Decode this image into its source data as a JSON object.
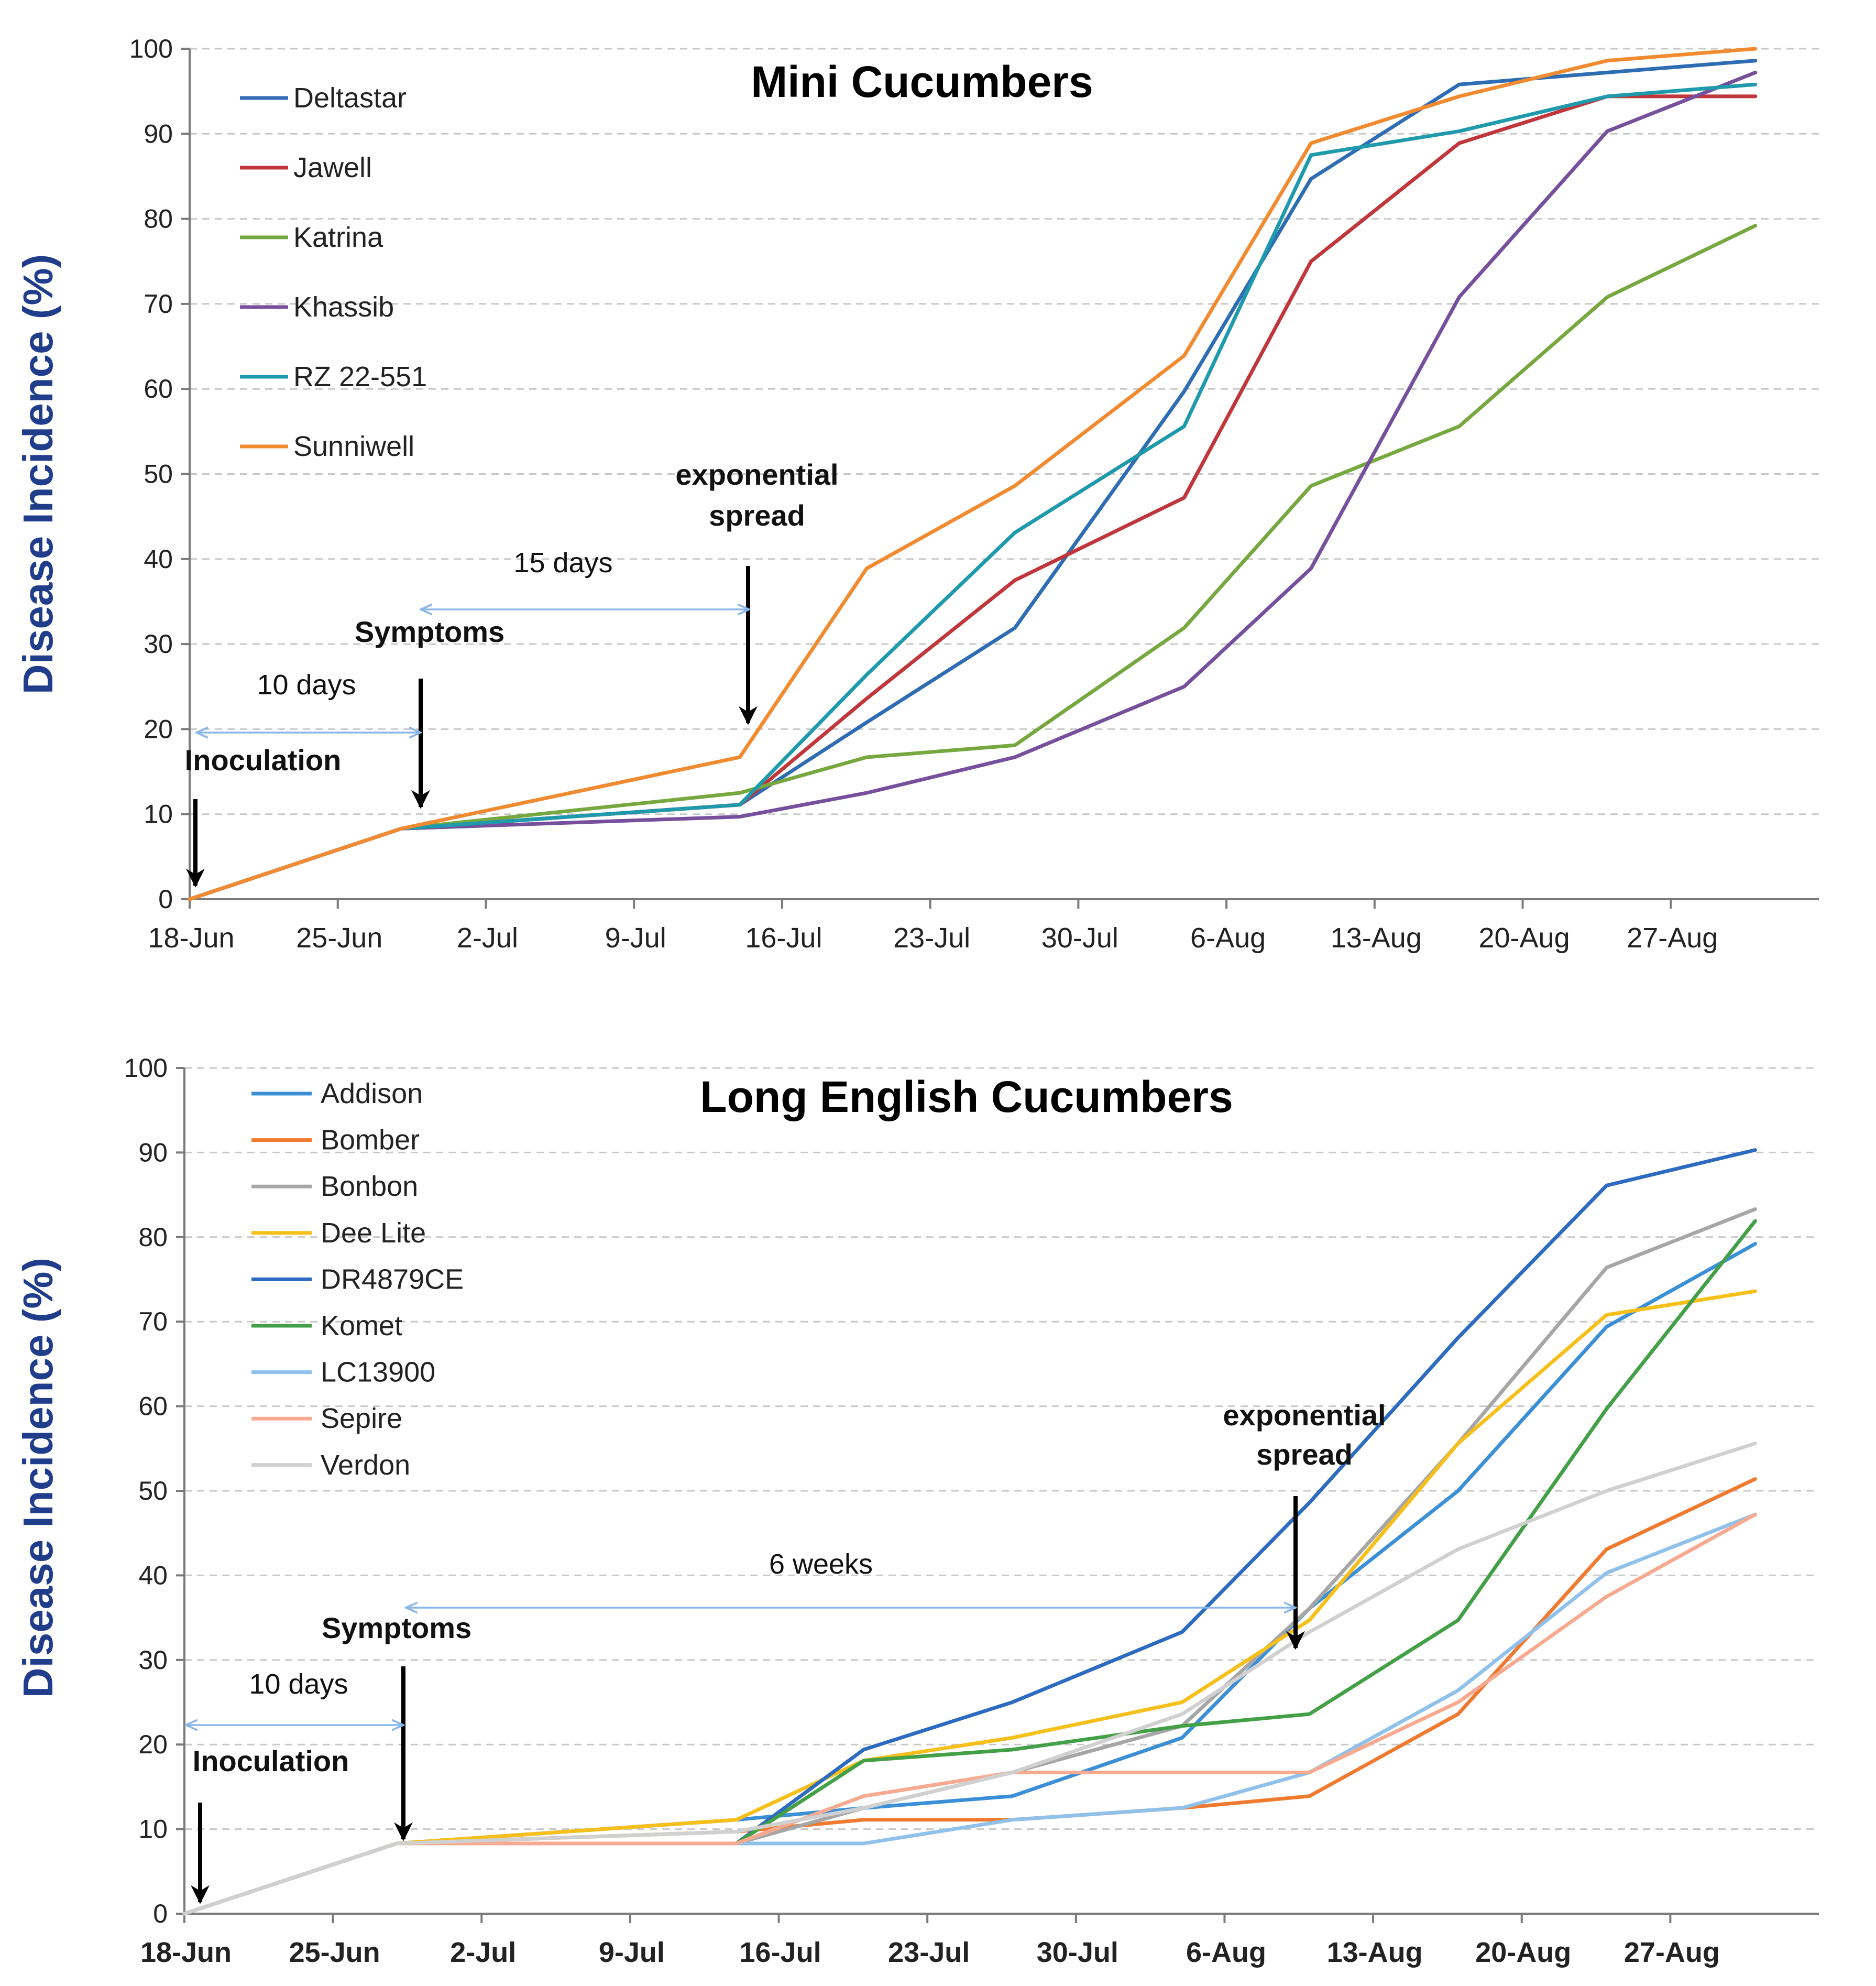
{
  "chart_data": [
    {
      "type": "line",
      "title": "Mini Cucumbers",
      "xlabel": "",
      "ylabel": "Disease Incidence (%)",
      "ylim": [
        0,
        100
      ],
      "yticks": [
        0,
        10,
        20,
        30,
        40,
        50,
        60,
        70,
        80,
        90,
        100
      ],
      "xlim": [
        0,
        74
      ],
      "xticks": [
        {
          "day": 0,
          "label": "18-Jun"
        },
        {
          "day": 7,
          "label": "25-Jun"
        },
        {
          "day": 14,
          "label": "2-Jul"
        },
        {
          "day": 21,
          "label": "9-Jul"
        },
        {
          "day": 28,
          "label": "16-Jul"
        },
        {
          "day": 35,
          "label": "23-Jul"
        },
        {
          "day": 42,
          "label": "30-Jul"
        },
        {
          "day": 49,
          "label": "6-Aug"
        },
        {
          "day": 56,
          "label": "13-Aug"
        },
        {
          "day": 63,
          "label": "20-Aug"
        },
        {
          "day": 70,
          "label": "27-Aug"
        }
      ],
      "grid": "horizontal dashed",
      "legend": "top-left",
      "x": [
        0,
        10,
        26,
        32,
        39,
        47,
        53,
        60,
        67,
        74
      ],
      "series": [
        {
          "name": "Deltastar",
          "color": "#2e6db4",
          "values": [
            0,
            8.3,
            11.1,
            20.8,
            31.9,
            59.7,
            84.7,
            95.8,
            97.2,
            98.6
          ]
        },
        {
          "name": "Jawell",
          "color": "#c0363a",
          "values": [
            0,
            8.3,
            11.1,
            23.6,
            37.5,
            47.2,
            75.0,
            88.9,
            94.4,
            94.4
          ]
        },
        {
          "name": "Katrina",
          "color": "#77a840",
          "values": [
            0,
            8.3,
            12.5,
            16.7,
            18.1,
            31.9,
            48.6,
            55.6,
            70.8,
            79.2
          ]
        },
        {
          "name": "Khassib",
          "color": "#76509c",
          "values": [
            0,
            8.3,
            9.7,
            12.5,
            16.7,
            25.0,
            38.9,
            70.8,
            90.3,
            97.2
          ]
        },
        {
          "name": "RZ 22-551",
          "color": "#1e9aac",
          "values": [
            0,
            8.3,
            11.1,
            26.4,
            43.1,
            55.6,
            87.5,
            90.3,
            94.4,
            95.8
          ]
        },
        {
          "name": "Sunniwell",
          "color": "#f28a30",
          "values": [
            0,
            8.3,
            16.7,
            38.9,
            48.6,
            63.9,
            88.9,
            94.4,
            98.6,
            100
          ]
        }
      ],
      "annotations": [
        {
          "text": "Inoculation",
          "bold": true
        },
        {
          "text": "Symptoms",
          "bold": true
        },
        {
          "text": "exponential",
          "bold": true
        },
        {
          "text": "spread",
          "bold": true
        },
        {
          "text": "10 days",
          "bold": false
        },
        {
          "text": "15 days",
          "bold": false
        }
      ]
    },
    {
      "type": "line",
      "title": "Long English Cucumbers",
      "xlabel": "",
      "ylabel": "Disease Incidence (%)",
      "ylim": [
        0,
        100
      ],
      "yticks": [
        0,
        10,
        20,
        30,
        40,
        50,
        60,
        70,
        80,
        90,
        100
      ],
      "xlim": [
        0,
        74
      ],
      "xticks": [
        {
          "day": 0,
          "label": "18-Jun"
        },
        {
          "day": 7,
          "label": "25-Jun"
        },
        {
          "day": 14,
          "label": "2-Jul"
        },
        {
          "day": 21,
          "label": "9-Jul"
        },
        {
          "day": 28,
          "label": "16-Jul"
        },
        {
          "day": 35,
          "label": "23-Jul"
        },
        {
          "day": 42,
          "label": "30-Jul"
        },
        {
          "day": 49,
          "label": "6-Aug"
        },
        {
          "day": 56,
          "label": "13-Aug"
        },
        {
          "day": 63,
          "label": "20-Aug"
        },
        {
          "day": 70,
          "label": "27-Aug"
        }
      ],
      "grid": "horizontal dashed",
      "legend": "top-left",
      "x": [
        0,
        10,
        26,
        32,
        39,
        47,
        53,
        60,
        67,
        74
      ],
      "series": [
        {
          "name": "Addison",
          "color": "#3b8fd6",
          "values": [
            0,
            8.3,
            11.1,
            12.5,
            13.9,
            20.8,
            36.1,
            50.0,
            69.4,
            79.2
          ]
        },
        {
          "name": "Bomber",
          "color": "#f07a30",
          "values": [
            0,
            8.3,
            9.7,
            11.1,
            11.1,
            12.5,
            13.9,
            23.6,
            43.1,
            51.4
          ]
        },
        {
          "name": "Bonbon",
          "color": "#a6a6a6",
          "values": [
            0,
            8.3,
            8.3,
            12.5,
            16.7,
            22.2,
            36.1,
            55.6,
            76.4,
            83.3
          ]
        },
        {
          "name": "Dee Lite",
          "color": "#f6bf1a",
          "values": [
            0,
            8.3,
            11.1,
            18.1,
            20.8,
            25.0,
            34.7,
            55.6,
            70.8,
            73.6
          ]
        },
        {
          "name": "DR4879CE",
          "color": "#2c6bc0",
          "values": [
            0,
            8.3,
            8.3,
            19.4,
            25.0,
            33.3,
            48.6,
            68.1,
            86.1,
            90.3
          ]
        },
        {
          "name": "Komet",
          "color": "#43a047",
          "values": [
            0,
            8.3,
            8.3,
            18.1,
            19.4,
            22.2,
            23.6,
            34.7,
            59.7,
            81.9
          ]
        },
        {
          "name": "LC13900",
          "color": "#8fc1ea",
          "values": [
            0,
            8.3,
            8.3,
            8.3,
            11.1,
            12.5,
            16.7,
            26.4,
            40.3,
            47.2
          ]
        },
        {
          "name": "Sepire",
          "color": "#f7aa90",
          "values": [
            0,
            8.3,
            8.3,
            13.9,
            16.7,
            16.7,
            16.7,
            25.0,
            37.5,
            47.2
          ]
        },
        {
          "name": "Verdon",
          "color": "#d0d0d0",
          "values": [
            0,
            8.3,
            9.7,
            12.5,
            16.7,
            23.6,
            33.3,
            43.1,
            50.0,
            55.6
          ]
        }
      ],
      "annotations": [
        {
          "text": "Inoculation",
          "bold": true
        },
        {
          "text": "Symptoms",
          "bold": true
        },
        {
          "text": "exponential",
          "bold": true
        },
        {
          "text": "spread",
          "bold": true
        },
        {
          "text": "10 days",
          "bold": false
        },
        {
          "text": "6 weeks",
          "bold": false
        }
      ]
    }
  ]
}
